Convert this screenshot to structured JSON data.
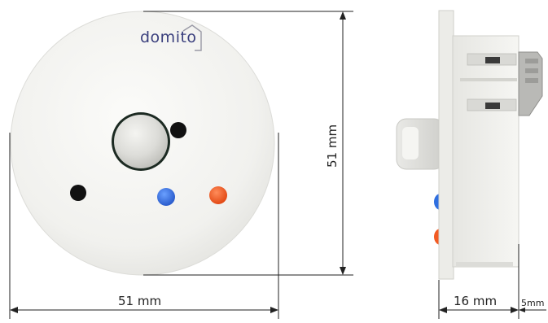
{
  "front_view": {
    "logo_text": "domito",
    "width_label": "51 mm",
    "height_label": "51 mm",
    "led_colors": {
      "blue": "#2f6fe0",
      "orange": "#f25a22",
      "dark": "#111111"
    }
  },
  "side_view": {
    "depth_label": "16 mm",
    "extra_label": "5mm"
  }
}
